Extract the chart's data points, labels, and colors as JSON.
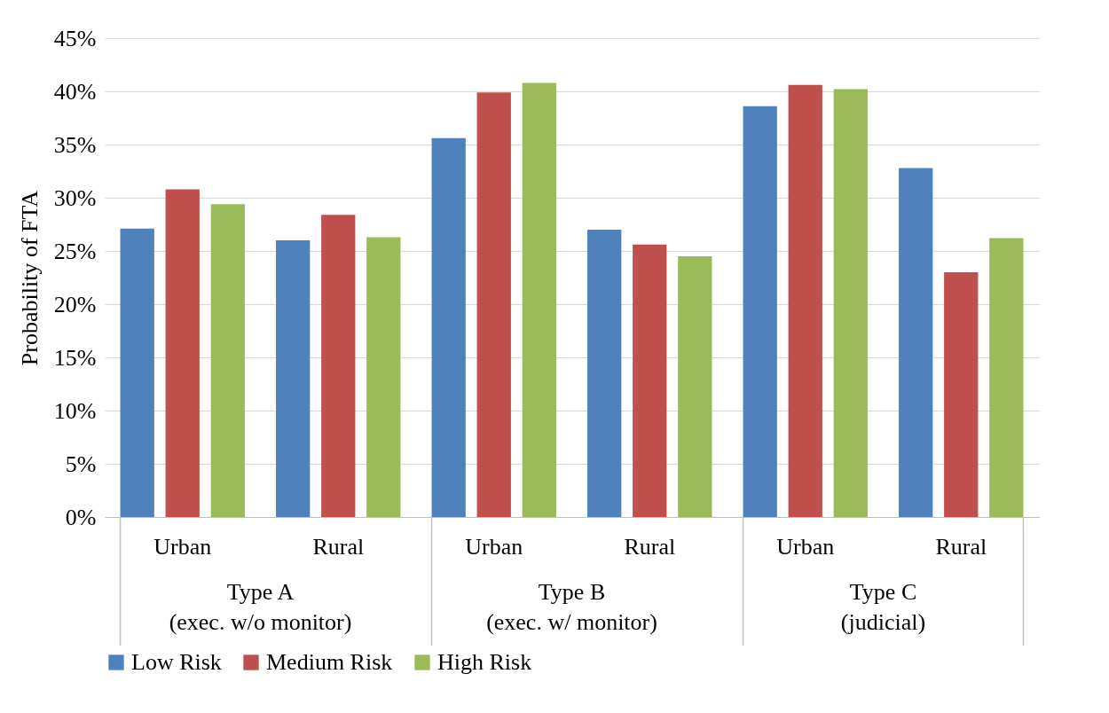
{
  "chart_data": {
    "type": "bar",
    "ylabel": "Probability of FTA",
    "categories": [
      "Urban",
      "Rural",
      "Urban",
      "Rural",
      "Urban",
      "Rural"
    ],
    "series": [
      {
        "name": "Low Risk",
        "color": "#4f81bd",
        "values": [
          27.1,
          26.0,
          35.6,
          27.0,
          38.6,
          32.8
        ]
      },
      {
        "name": "Medium Risk",
        "color": "#c0504d",
        "values": [
          30.8,
          28.4,
          39.9,
          25.6,
          40.6,
          23.0
        ]
      },
      {
        "name": "High Risk",
        "color": "#9bbb59",
        "values": [
          29.4,
          26.3,
          40.8,
          24.5,
          40.2,
          26.2
        ]
      }
    ],
    "annotations": [
      "Type A\n(exec. w/o monitor)",
      "Type B\n(exec. w/ monitor)",
      "Type C\n(judicial)"
    ],
    "ylim": [
      0,
      45
    ],
    "yticks": [
      {
        "value": 0,
        "label": "0%"
      },
      {
        "value": 5,
        "label": "5%"
      },
      {
        "value": 10,
        "label": "10%"
      },
      {
        "value": 15,
        "label": "15%"
      },
      {
        "value": 20,
        "label": "20%"
      },
      {
        "value": 25,
        "label": "25%"
      },
      {
        "value": 30,
        "label": "30%"
      },
      {
        "value": 35,
        "label": "35%"
      },
      {
        "value": 40,
        "label": "40%"
      },
      {
        "value": 45,
        "label": "45%"
      }
    ],
    "grid": "y",
    "legend": "bottom"
  }
}
